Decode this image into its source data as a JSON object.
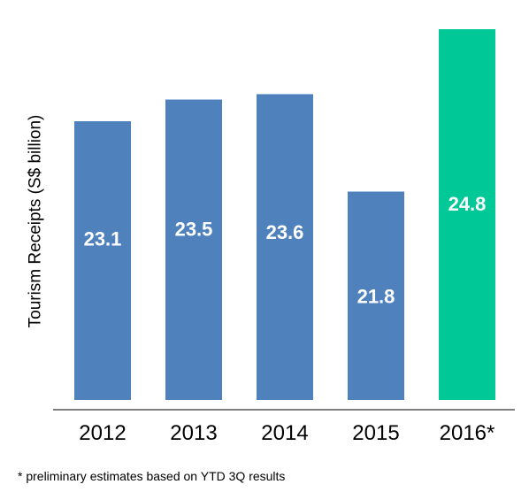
{
  "chart_data": {
    "type": "bar",
    "categories": [
      "2012",
      "2013",
      "2014",
      "2015",
      "2016*"
    ],
    "values": [
      23.1,
      23.5,
      23.6,
      21.8,
      24.8
    ],
    "value_labels": [
      "23.1",
      "23.5",
      "23.6",
      "21.8",
      "24.8"
    ],
    "ylabel": "Tourism Receipts (S$ billion)",
    "xlabel": "",
    "grid": false,
    "legend": "none",
    "colors": [
      "#4f81bd",
      "#4f81bd",
      "#4f81bd",
      "#4f81bd",
      "#00c896"
    ],
    "label_color": "#ffffff",
    "axis_color": "#555555",
    "footnote": "* preliminary estimates based on YTD 3Q results"
  }
}
